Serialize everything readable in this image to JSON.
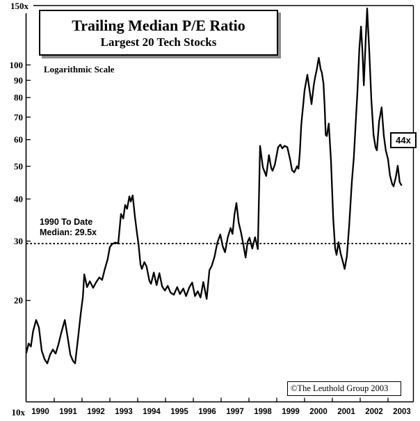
{
  "header": {
    "title": "Trailing Median P/E Ratio",
    "subtitle": "Largest 20 Tech Stocks",
    "scale_note": "Logarithmic Scale"
  },
  "annotations": {
    "median_line1": "1990 To Date",
    "median_line2": "Median: 29.5x",
    "last_value_label": "44x",
    "attribution": "©The Leuthold Group 2003"
  },
  "chart_data": {
    "type": "line",
    "title": "Trailing Median P/E Ratio",
    "subtitle": "Largest 20 Tech Stocks",
    "scale": "logarithmic",
    "grid": false,
    "legend": "none",
    "line_color": "#000000",
    "ylim": [
      10,
      150
    ],
    "xlim": [
      1990,
      2004
    ],
    "median_value": 29.5,
    "median_label": "1990 To Date Median: 29.5x",
    "last_value": 44,
    "y_axis": {
      "ticks": [
        {
          "value": 150,
          "label": "150x"
        },
        {
          "value": 100,
          "label": "100"
        },
        {
          "value": 90,
          "label": "90"
        },
        {
          "value": 80,
          "label": "80"
        },
        {
          "value": 70,
          "label": "70"
        },
        {
          "value": 60,
          "label": "60"
        },
        {
          "value": 50,
          "label": "50"
        },
        {
          "value": 40,
          "label": "40"
        },
        {
          "value": 30,
          "label": "30"
        },
        {
          "value": 20,
          "label": "20"
        },
        {
          "value": 10,
          "label": "10x"
        }
      ]
    },
    "x_axis": {
      "years": [
        1990,
        1991,
        1992,
        1993,
        1994,
        1995,
        1996,
        1997,
        1998,
        1999,
        2000,
        2001,
        2002,
        2003
      ]
    },
    "series": [
      {
        "name": "Trailing median P/E, largest 20 tech stocks",
        "points": [
          [
            1990.0,
            14.0
          ],
          [
            1990.08,
            14.9
          ],
          [
            1990.16,
            14.6
          ],
          [
            1990.24,
            16.2
          ],
          [
            1990.35,
            17.5
          ],
          [
            1990.45,
            16.6
          ],
          [
            1990.55,
            14.2
          ],
          [
            1990.65,
            13.4
          ],
          [
            1990.75,
            13.0
          ],
          [
            1990.85,
            13.8
          ],
          [
            1990.95,
            14.3
          ],
          [
            1991.05,
            13.9
          ],
          [
            1991.15,
            14.8
          ],
          [
            1991.25,
            16.0
          ],
          [
            1991.38,
            17.5
          ],
          [
            1991.48,
            15.6
          ],
          [
            1991.58,
            13.8
          ],
          [
            1991.68,
            13.2
          ],
          [
            1991.75,
            13.0
          ],
          [
            1991.85,
            15.3
          ],
          [
            1991.95,
            18.2
          ],
          [
            1992.03,
            20.5
          ],
          [
            1992.08,
            23.9
          ],
          [
            1992.18,
            21.9
          ],
          [
            1992.28,
            22.8
          ],
          [
            1992.4,
            21.8
          ],
          [
            1992.5,
            22.6
          ],
          [
            1992.62,
            23.4
          ],
          [
            1992.72,
            23.0
          ],
          [
            1992.82,
            24.8
          ],
          [
            1992.92,
            26.5
          ],
          [
            1993.0,
            28.8
          ],
          [
            1993.08,
            29.4
          ],
          [
            1993.2,
            29.7
          ],
          [
            1993.3,
            29.5
          ],
          [
            1993.4,
            36.1
          ],
          [
            1993.48,
            35.0
          ],
          [
            1993.55,
            38.4
          ],
          [
            1993.62,
            37.4
          ],
          [
            1993.7,
            40.7
          ],
          [
            1993.75,
            39.3
          ],
          [
            1993.82,
            41.0
          ],
          [
            1993.9,
            35.5
          ],
          [
            1993.97,
            31.9
          ],
          [
            1994.03,
            29.4
          ],
          [
            1994.1,
            25.6
          ],
          [
            1994.15,
            24.8
          ],
          [
            1994.24,
            26.0
          ],
          [
            1994.32,
            25.2
          ],
          [
            1994.42,
            22.9
          ],
          [
            1994.48,
            22.4
          ],
          [
            1994.58,
            24.2
          ],
          [
            1994.68,
            22.2
          ],
          [
            1994.78,
            24.1
          ],
          [
            1994.88,
            22.0
          ],
          [
            1994.98,
            21.4
          ],
          [
            1995.08,
            22.1
          ],
          [
            1995.18,
            21.1
          ],
          [
            1995.3,
            20.8
          ],
          [
            1995.42,
            21.9
          ],
          [
            1995.52,
            20.9
          ],
          [
            1995.64,
            21.7
          ],
          [
            1995.74,
            20.6
          ],
          [
            1995.86,
            21.9
          ],
          [
            1995.96,
            22.6
          ],
          [
            1996.06,
            20.6
          ],
          [
            1996.16,
            21.3
          ],
          [
            1996.26,
            20.4
          ],
          [
            1996.36,
            22.7
          ],
          [
            1996.48,
            20.2
          ],
          [
            1996.58,
            24.6
          ],
          [
            1996.66,
            25.3
          ],
          [
            1996.76,
            26.9
          ],
          [
            1996.86,
            29.6
          ],
          [
            1996.97,
            31.4
          ],
          [
            1997.06,
            28.9
          ],
          [
            1997.14,
            27.8
          ],
          [
            1997.24,
            30.8
          ],
          [
            1997.34,
            32.8
          ],
          [
            1997.41,
            31.5
          ],
          [
            1997.48,
            36.0
          ],
          [
            1997.55,
            38.9
          ],
          [
            1997.63,
            34.1
          ],
          [
            1997.72,
            31.7
          ],
          [
            1997.8,
            29.2
          ],
          [
            1997.88,
            26.8
          ],
          [
            1997.95,
            29.8
          ],
          [
            1998.02,
            30.7
          ],
          [
            1998.12,
            28.5
          ],
          [
            1998.22,
            30.8
          ],
          [
            1998.32,
            28.4
          ],
          [
            1998.4,
            57.5
          ],
          [
            1998.5,
            49.7
          ],
          [
            1998.62,
            46.8
          ],
          [
            1998.72,
            54.0
          ],
          [
            1998.8,
            49.5
          ],
          [
            1998.85,
            48.5
          ],
          [
            1998.93,
            50.5
          ],
          [
            1999.05,
            57.0
          ],
          [
            1999.13,
            58.0
          ],
          [
            1999.2,
            56.5
          ],
          [
            1999.28,
            57.5
          ],
          [
            1999.38,
            57.0
          ],
          [
            1999.48,
            52.4
          ],
          [
            1999.55,
            48.7
          ],
          [
            1999.63,
            48.0
          ],
          [
            1999.73,
            50.0
          ],
          [
            1999.78,
            49.2
          ],
          [
            1999.83,
            55.0
          ],
          [
            1999.88,
            66.0
          ],
          [
            1999.9,
            69.0
          ],
          [
            1999.95,
            76.0
          ],
          [
            2000.0,
            84.0
          ],
          [
            2000.1,
            93.5
          ],
          [
            2000.18,
            84.0
          ],
          [
            2000.25,
            76.5
          ],
          [
            2000.33,
            87.0
          ],
          [
            2000.38,
            92.0
          ],
          [
            2000.44,
            97.0
          ],
          [
            2000.51,
            105.0
          ],
          [
            2000.58,
            97.0
          ],
          [
            2000.62,
            95.0
          ],
          [
            2000.68,
            88.0
          ],
          [
            2000.72,
            76.0
          ],
          [
            2000.76,
            62.0
          ],
          [
            2000.8,
            61.5
          ],
          [
            2000.87,
            67.0
          ],
          [
            2000.95,
            52.0
          ],
          [
            2001.03,
            35.0
          ],
          [
            2001.1,
            28.5
          ],
          [
            2001.15,
            27.3
          ],
          [
            2001.22,
            29.8
          ],
          [
            2001.3,
            27.5
          ],
          [
            2001.38,
            26.0
          ],
          [
            2001.44,
            24.8
          ],
          [
            2001.52,
            27.0
          ],
          [
            2001.6,
            33.0
          ],
          [
            2001.7,
            45.0
          ],
          [
            2001.77,
            53.0
          ],
          [
            2001.85,
            70.0
          ],
          [
            2001.9,
            83.0
          ],
          [
            2001.97,
            112.0
          ],
          [
            2002.03,
            130.0
          ],
          [
            2002.08,
            110.0
          ],
          [
            2002.13,
            87.0
          ],
          [
            2002.2,
            120.0
          ],
          [
            2002.25,
            147.0
          ],
          [
            2002.33,
            108.0
          ],
          [
            2002.4,
            79.0
          ],
          [
            2002.48,
            62.0
          ],
          [
            2002.55,
            57.0
          ],
          [
            2002.6,
            55.8
          ],
          [
            2002.68,
            68.0
          ],
          [
            2002.77,
            74.8
          ],
          [
            2002.85,
            61.6
          ],
          [
            2002.92,
            55.8
          ],
          [
            2003.0,
            52.5
          ],
          [
            2003.07,
            47.0
          ],
          [
            2003.15,
            44.3
          ],
          [
            2003.2,
            43.6
          ],
          [
            2003.28,
            46.4
          ],
          [
            2003.35,
            50.2
          ],
          [
            2003.42,
            44.9
          ],
          [
            2003.48,
            44.0
          ]
        ]
      }
    ]
  }
}
